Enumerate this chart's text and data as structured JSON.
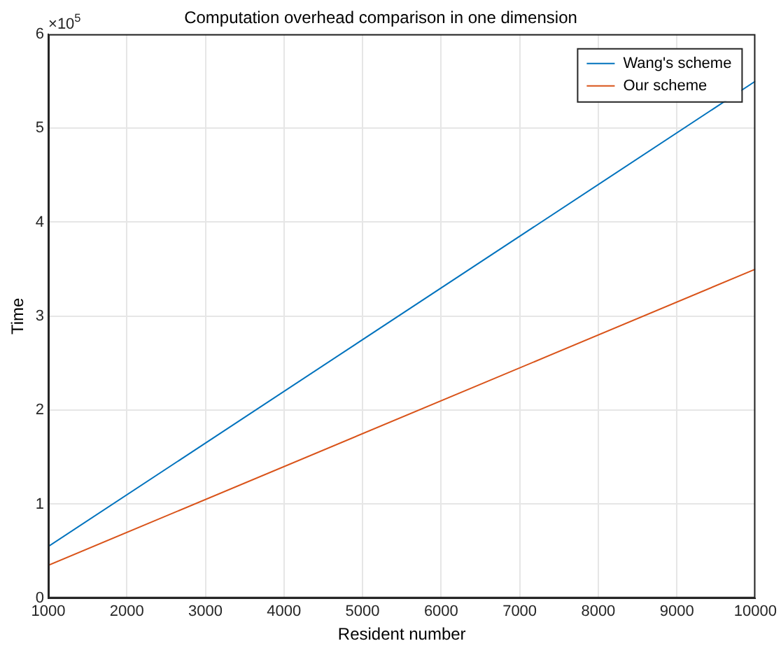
{
  "chart_data": {
    "type": "line",
    "title": "Computation overhead comparison in one dimension",
    "xlabel": "Resident number",
    "ylabel": "Time",
    "annotations": [
      "×10$^{5}$"
    ],
    "x": [
      1000,
      10000
    ],
    "series": [
      {
        "name": "Wang's scheme",
        "color": "#0072bd",
        "values": [
          0.55,
          5.5
        ]
      },
      {
        "name": "Our scheme",
        "color": "#d95319",
        "values": [
          0.35,
          3.5
        ]
      }
    ],
    "xlim": [
      1000,
      10000
    ],
    "xticks": [
      1000,
      2000,
      3000,
      4000,
      5000,
      6000,
      7000,
      8000,
      9000,
      10000
    ],
    "ylim": [
      0,
      6
    ],
    "yticks": [
      0,
      1,
      2,
      3,
      4,
      5,
      6
    ],
    "grid": true,
    "legend": "top right",
    "marker": "none",
    "line_style": "solid"
  }
}
